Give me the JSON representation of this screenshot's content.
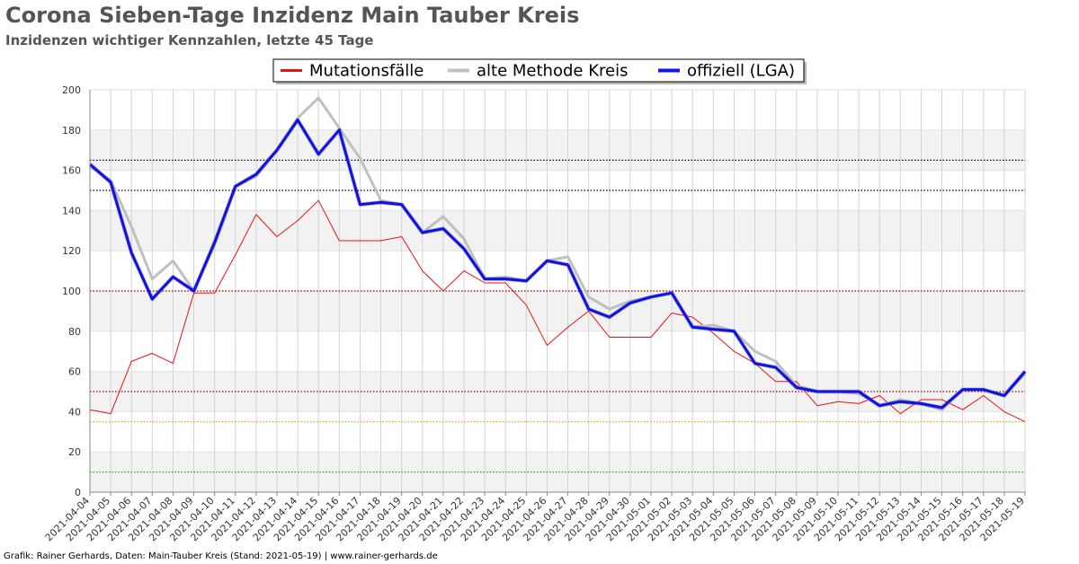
{
  "header": {
    "title": "Corona Sieben-Tage Inzidenz Main Tauber Kreis",
    "subtitle": "Inzidenzen wichtiger Kennzahlen, letzte 45 Tage"
  },
  "footer": {
    "credit": "Grafik: Rainer Gerhards, Daten: Main-Tauber Kreis (Stand: 2021-05-19) | www.rainer-gerhards.de"
  },
  "chart_data": {
    "type": "line",
    "title": "Corona Sieben-Tage Inzidenz Main Tauber Kreis",
    "subtitle": "Inzidenzen wichtiger Kennzahlen, letzte 45 Tage",
    "xlabel": "",
    "ylabel": "",
    "ylim": [
      0,
      200
    ],
    "yticks": [
      0,
      20,
      40,
      60,
      80,
      100,
      120,
      140,
      160,
      180,
      200
    ],
    "grid": true,
    "legend_position": "top-center",
    "x": [
      "2021-04-04",
      "2021-04-05",
      "2021-04-06",
      "2021-04-07",
      "2021-04-08",
      "2021-04-09",
      "2021-04-10",
      "2021-04-11",
      "2021-04-12",
      "2021-04-13",
      "2021-04-14",
      "2021-04-15",
      "2021-04-16",
      "2021-04-17",
      "2021-04-18",
      "2021-04-19",
      "2021-04-20",
      "2021-04-21",
      "2021-04-22",
      "2021-04-23",
      "2021-04-24",
      "2021-04-25",
      "2021-04-26",
      "2021-04-27",
      "2021-04-28",
      "2021-04-29",
      "2021-04-30",
      "2021-05-01",
      "2021-05-02",
      "2021-05-03",
      "2021-05-04",
      "2021-05-05",
      "2021-05-06",
      "2021-05-07",
      "2021-05-08",
      "2021-05-09",
      "2021-05-10",
      "2021-05-11",
      "2021-05-12",
      "2021-05-13",
      "2021-05-14",
      "2021-05-15",
      "2021-05-16",
      "2021-05-17",
      "2021-05-18",
      "2021-05-19"
    ],
    "series": [
      {
        "name": "Mutationsfälle",
        "color": "#ee1111",
        "width": 1,
        "values": [
          41,
          39,
          65,
          69,
          64,
          99,
          99,
          118,
          138,
          127,
          135,
          145,
          125,
          125,
          125,
          127,
          110,
          100,
          110,
          104,
          104,
          93,
          73,
          82,
          90,
          77,
          77,
          77,
          89,
          87,
          79,
          70,
          64,
          55,
          55,
          43,
          45,
          44,
          48,
          39,
          46,
          46,
          41,
          48,
          40,
          35
        ]
      },
      {
        "name": "alte Methode Kreis",
        "color": "#c0c0c0",
        "width": 3,
        "values": [
          162,
          155,
          132,
          106,
          115,
          100,
          125,
          152,
          157,
          170,
          186,
          196,
          181,
          166,
          145,
          143,
          129,
          137,
          126,
          106,
          107,
          105,
          115,
          117,
          97,
          91,
          95,
          97,
          99,
          82,
          83,
          80,
          70,
          65,
          53,
          50,
          50,
          49,
          43,
          46,
          44,
          41,
          51,
          51,
          48,
          59
        ]
      },
      {
        "name": "offiziell (LGA)",
        "color": "#1111ee",
        "width": 3,
        "values": [
          163,
          154,
          119,
          96,
          107,
          100,
          124,
          152,
          158,
          170,
          185,
          168,
          180,
          143,
          144,
          143,
          129,
          131,
          121,
          106,
          106,
          105,
          115,
          113,
          91,
          87,
          94,
          97,
          99,
          82,
          81,
          80,
          64,
          62,
          52,
          50,
          50,
          50,
          43,
          45,
          44,
          42,
          51,
          51,
          48,
          60
        ]
      }
    ],
    "reference_lines": [
      {
        "value": 165,
        "color": "#000000"
      },
      {
        "value": 150,
        "color": "#000000"
      },
      {
        "value": 100,
        "color": "#990000"
      },
      {
        "value": 50,
        "color": "#990000"
      },
      {
        "value": 35,
        "color": "#ff9900"
      },
      {
        "value": 10,
        "color": "#00bb00"
      }
    ]
  }
}
